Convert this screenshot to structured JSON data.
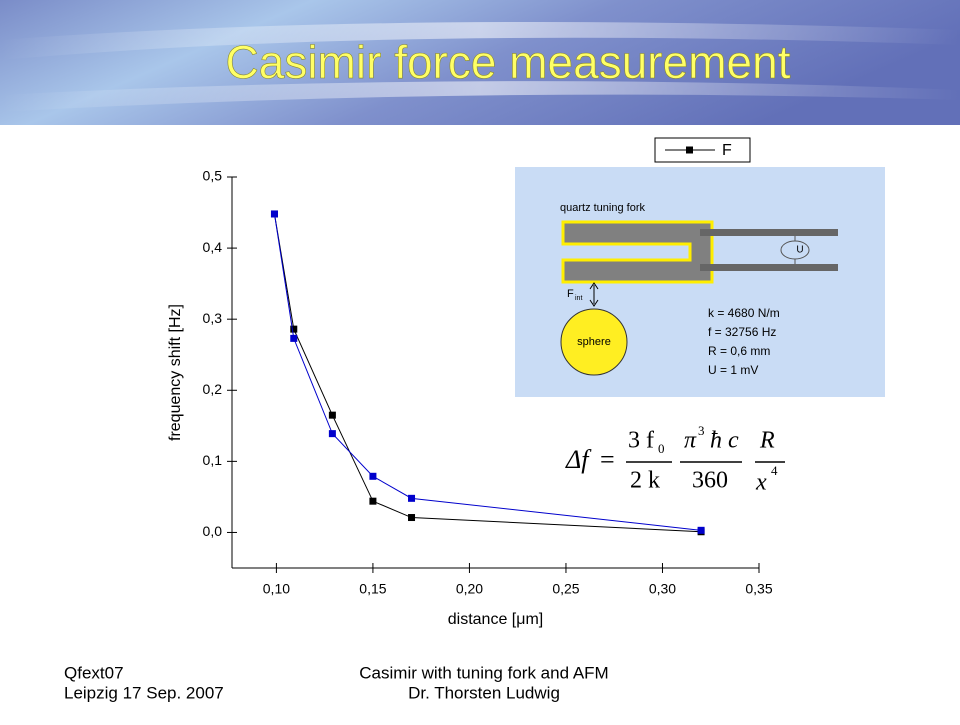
{
  "slide": {
    "title": "Casimir force measurement",
    "footer_left": [
      "Qfext07",
      "Leipzig 17 Sep. 2007"
    ],
    "footer_center": [
      "Casimir with tuning fork and AFM",
      "Dr. Thorsten Ludwig"
    ]
  },
  "inset": {
    "fork_label": "quartz tuning fork",
    "force_label": "F",
    "force_sub": "int",
    "sphere_label": "sphere",
    "source_label": "U",
    "parameters": [
      "k = 4680 N/m",
      "f  = 32756 Hz",
      "R = 0,6 mm",
      "U = 1 mV"
    ]
  },
  "formula": {
    "lhs": "Δf",
    "eq": "=",
    "n1": "3 f",
    "n1_sub": "0",
    "d1": "2 k",
    "n2": "π",
    "n2_sup": "3",
    "n2_rest": "ħ c",
    "d2": "360",
    "n3": "R",
    "d3": "x",
    "d3_sup": "4"
  },
  "chart_data": {
    "type": "line",
    "x_label": "distance [μm]",
    "y_label": "frequency shift [Hz]",
    "series": [
      {
        "name": "F",
        "color": "#000000",
        "x": [
          0.099,
          0.109,
          0.129,
          0.15,
          0.17,
          0.32
        ],
        "values": [
          0.448,
          0.286,
          0.165,
          0.044,
          0.021,
          0.001
        ]
      },
      {
        "color": "#0000cc",
        "x": [
          0.099,
          0.109,
          0.129,
          0.15,
          0.17,
          0.32
        ],
        "values": [
          0.448,
          0.273,
          0.139,
          0.079,
          0.048,
          0.003
        ]
      }
    ],
    "xlim": [
      0.077,
      0.35
    ],
    "xticks": [
      {
        "value": 0.1,
        "label": "0,10"
      },
      {
        "value": 0.15,
        "label": "0,15"
      },
      {
        "value": 0.2,
        "label": "0,20"
      },
      {
        "value": 0.25,
        "label": "0,25"
      },
      {
        "value": 0.3,
        "label": "0,30"
      },
      {
        "value": 0.35,
        "label": "0,35"
      }
    ],
    "ylim": [
      -0.05,
      0.5
    ],
    "yticks": [
      {
        "value": 0,
        "label": "0,0"
      },
      {
        "value": 0.1,
        "label": "0,1"
      },
      {
        "value": 0.2,
        "label": "0,2"
      },
      {
        "value": 0.3,
        "label": "0,3"
      },
      {
        "value": 0.4,
        "label": "0,4"
      },
      {
        "value": 0.5,
        "label": "0,5"
      }
    ],
    "legend": "top-right"
  }
}
